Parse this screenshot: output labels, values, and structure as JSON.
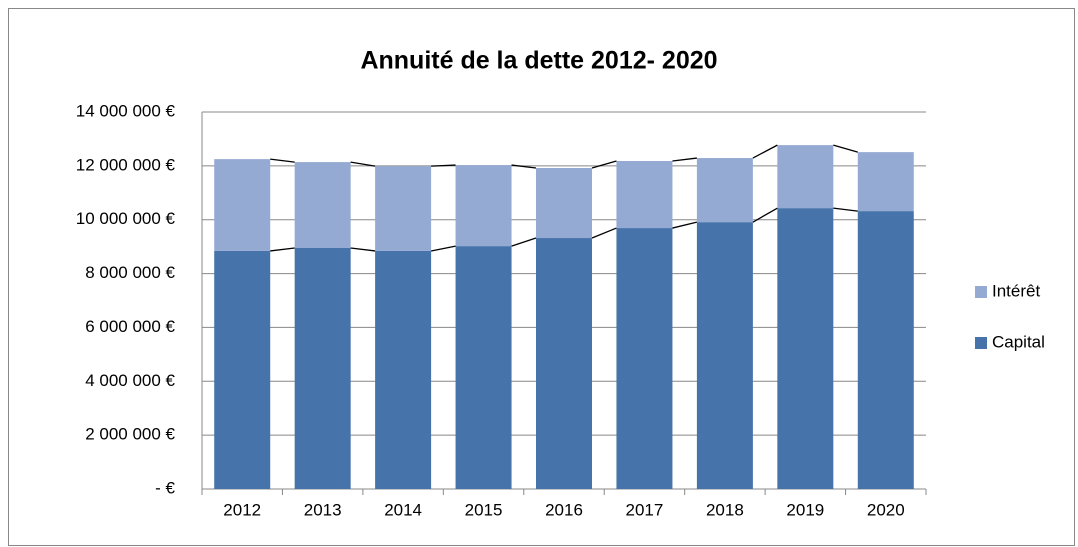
{
  "chart_data": {
    "type": "bar",
    "stacked": true,
    "title": "Annuité de la dette 2012- 2020",
    "categories": [
      "2012",
      "2013",
      "2014",
      "2015",
      "2016",
      "2017",
      "2018",
      "2019",
      "2020"
    ],
    "series": [
      {
        "name": "Capital",
        "color": "#4674aa",
        "values": [
          8840000,
          8950000,
          8840000,
          9020000,
          9320000,
          9690000,
          9910000,
          10430000,
          10320000
        ]
      },
      {
        "name": "Intérêt",
        "color": "#95aad3",
        "values": [
          3410000,
          3190000,
          3150000,
          3010000,
          2600000,
          2490000,
          2380000,
          2340000,
          2190000
        ]
      }
    ],
    "ylim": [
      0,
      14000000
    ],
    "yticks": [
      {
        "value": 0,
        "label": "-  €"
      },
      {
        "value": 2000000,
        "label": "2 000 000 €"
      },
      {
        "value": 4000000,
        "label": "4 000 000 €"
      },
      {
        "value": 6000000,
        "label": "6 000 000 €"
      },
      {
        "value": 8000000,
        "label": "8 000 000 €"
      },
      {
        "value": 10000000,
        "label": "10 000 000 €"
      },
      {
        "value": 12000000,
        "label": "12 000 000 €"
      },
      {
        "value": 14000000,
        "label": "14 000 000 €"
      }
    ],
    "grid": true,
    "legend": "right"
  }
}
